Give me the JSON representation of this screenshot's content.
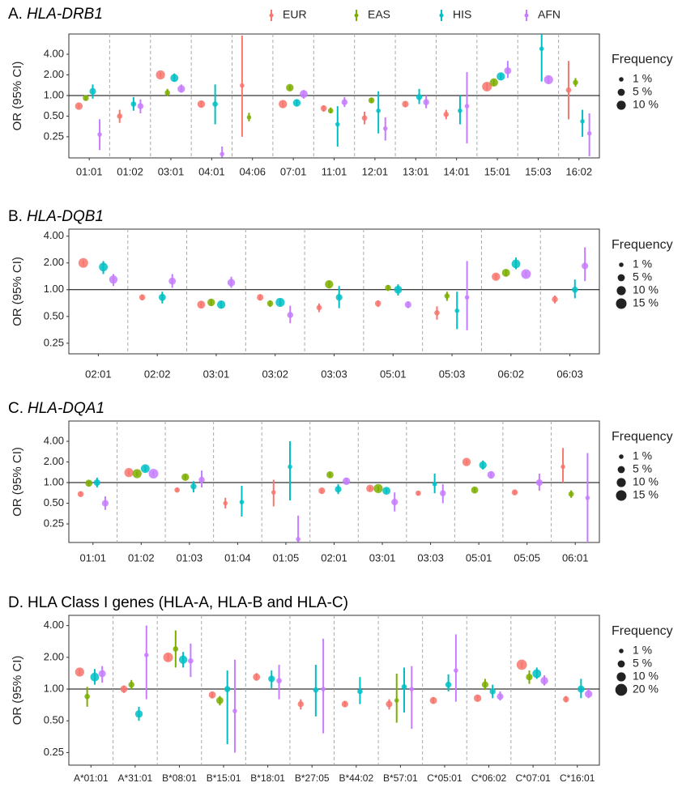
{
  "chart_data": [
    {
      "type": "forest",
      "panel": "A.",
      "title": "HLA-DRB1",
      "title_italic": true,
      "ylabel": "OR (95% CI)",
      "log_y": true,
      "refline": 1,
      "legend": "top",
      "categories": [
        "01:01",
        "01:02",
        "03:01",
        "04:01",
        "04:06",
        "07:01",
        "11:01",
        "12:01",
        "13:01",
        "14:01",
        "15:01",
        "15:03",
        "16:02"
      ],
      "ylim": [
        0.123,
        7.9
      ],
      "yticks": [
        0.25,
        {
          "value": 0.5,
          "label": "0.50"
        },
        {
          "value": 1,
          "label": "1.00"
        },
        {
          "value": 2,
          "label": "2.00"
        },
        {
          "value": 4,
          "label": "4.00"
        }
      ],
      "size_legend": {
        "title": "Frequency",
        "values": [
          1,
          5,
          10
        ],
        "labels": [
          "1 %",
          "5 %",
          "10 %"
        ]
      },
      "series": [
        {
          "name": "EUR",
          "color": "#F8766D",
          "values": [
            0.7,
            0.5,
            2.0,
            0.75,
            1.4,
            0.75,
            0.65,
            0.47,
            0.75,
            0.53,
            1.35,
            null,
            1.2
          ],
          "lower": [
            0.65,
            0.4,
            1.85,
            0.68,
            0.25,
            0.68,
            0.58,
            0.38,
            0.68,
            0.45,
            1.2,
            null,
            0.45
          ],
          "upper": [
            0.76,
            0.62,
            2.15,
            0.83,
            7.5,
            0.83,
            0.72,
            0.58,
            0.82,
            0.62,
            1.5,
            null,
            3.2
          ],
          "freq": [
            6,
            2,
            10,
            6,
            1,
            8,
            3,
            2,
            4,
            2,
            12,
            null,
            2
          ]
        },
        {
          "name": "EAS",
          "color": "#7CAE00",
          "values": [
            0.92,
            null,
            1.1,
            null,
            0.48,
            1.3,
            0.6,
            0.85,
            null,
            null,
            1.55,
            null,
            1.55
          ],
          "lower": [
            0.85,
            null,
            0.98,
            null,
            0.42,
            1.2,
            0.55,
            0.78,
            null,
            null,
            1.4,
            null,
            1.35
          ],
          "upper": [
            1.0,
            null,
            1.25,
            null,
            0.56,
            1.4,
            0.67,
            0.92,
            null,
            null,
            1.7,
            null,
            1.8
          ],
          "freq": [
            3,
            null,
            2,
            null,
            1,
            6,
            2,
            3,
            null,
            null,
            8,
            null,
            2
          ]
        },
        {
          "name": "HIS",
          "color": "#00BFC4",
          "values": [
            1.15,
            0.75,
            1.8,
            0.75,
            null,
            0.78,
            0.38,
            0.6,
            0.95,
            0.6,
            1.9,
            4.8,
            0.42
          ],
          "lower": [
            0.9,
            0.6,
            1.6,
            0.38,
            null,
            0.7,
            0.18,
            0.28,
            0.75,
            0.38,
            1.7,
            1.6,
            0.25
          ],
          "upper": [
            1.45,
            0.95,
            2.1,
            1.45,
            null,
            0.88,
            0.7,
            1.15,
            1.25,
            1.0,
            2.1,
            7.9,
            0.62
          ],
          "freq": [
            4,
            2,
            7,
            2,
            null,
            6,
            1,
            1,
            3,
            1,
            8,
            1,
            1
          ]
        },
        {
          "name": "AFN",
          "color": "#C77CFF",
          "values": [
            0.27,
            0.7,
            1.25,
            0.14,
            null,
            1.05,
            0.8,
            0.33,
            0.8,
            0.7,
            2.3,
            1.7,
            0.28
          ],
          "lower": [
            0.16,
            0.55,
            1.1,
            0.125,
            null,
            0.9,
            0.68,
            0.22,
            0.65,
            0.2,
            1.8,
            1.5,
            0.13
          ],
          "upper": [
            0.45,
            0.88,
            1.45,
            0.18,
            null,
            1.2,
            0.95,
            0.48,
            1.0,
            2.2,
            3.2,
            1.9,
            0.55
          ],
          "freq": [
            1,
            3,
            6,
            1,
            null,
            7,
            3,
            1,
            3,
            1,
            5,
            10,
            1
          ]
        }
      ]
    },
    {
      "type": "forest",
      "panel": "B.",
      "title": "HLA-DQB1",
      "title_italic": true,
      "ylabel": "OR (95% CI)",
      "log_y": true,
      "refline": 1,
      "categories": [
        "02:01",
        "02:02",
        "03:01",
        "03:02",
        "03:03",
        "05:01",
        "05:03",
        "06:02",
        "06:03"
      ],
      "ylim": [
        0.19,
        4.8
      ],
      "yticks": [
        0.25,
        {
          "value": 0.5,
          "label": "0.50"
        },
        {
          "value": 1,
          "label": "1.00"
        },
        {
          "value": 2,
          "label": "2.00"
        },
        {
          "value": 4,
          "label": "4.00"
        }
      ],
      "size_legend": {
        "title": "Frequency",
        "values": [
          1,
          5,
          10,
          15
        ],
        "labels": [
          "1 %",
          "5 %",
          "10 %",
          "15 %"
        ]
      },
      "series": [
        {
          "color": "#F8766D",
          "values": [
            2.0,
            0.82,
            0.68,
            0.82,
            0.63,
            0.7,
            0.55,
            1.4,
            0.78
          ],
          "lower": [
            1.85,
            0.76,
            0.63,
            0.76,
            0.56,
            0.64,
            0.46,
            1.3,
            0.7
          ],
          "upper": [
            2.15,
            0.88,
            0.73,
            0.88,
            0.7,
            0.76,
            0.65,
            1.5,
            0.86
          ],
          "freq": [
            12,
            3,
            7,
            4,
            2,
            3,
            2,
            8,
            3
          ]
        },
        {
          "color": "#7CAE00",
          "values": [
            null,
            null,
            0.72,
            0.7,
            1.15,
            1.05,
            0.85,
            1.55,
            null
          ],
          "lower": [
            null,
            null,
            0.66,
            0.64,
            1.05,
            0.97,
            0.75,
            1.42,
            null
          ],
          "upper": [
            null,
            null,
            0.78,
            0.76,
            1.25,
            1.13,
            0.95,
            1.68,
            null
          ],
          "freq": [
            null,
            null,
            6,
            3,
            8,
            3,
            2,
            7,
            null
          ]
        },
        {
          "color": "#00BFC4",
          "values": [
            1.8,
            0.82,
            0.68,
            0.72,
            0.82,
            1.0,
            0.58,
            1.95,
            1.0
          ],
          "lower": [
            1.5,
            0.7,
            0.62,
            0.66,
            0.62,
            0.86,
            0.36,
            1.7,
            0.8
          ],
          "upper": [
            2.1,
            0.95,
            0.74,
            0.78,
            1.1,
            1.15,
            0.95,
            2.3,
            1.3
          ],
          "freq": [
            9,
            5,
            8,
            10,
            4,
            7,
            1,
            9,
            3
          ]
        },
        {
          "color": "#C77CFF",
          "values": [
            1.3,
            1.25,
            1.2,
            0.52,
            null,
            0.68,
            0.82,
            1.5,
            1.85
          ],
          "lower": [
            1.1,
            1.05,
            1.05,
            0.42,
            null,
            0.62,
            0.35,
            1.4,
            1.25
          ],
          "upper": [
            1.5,
            1.5,
            1.4,
            0.66,
            null,
            0.74,
            2.1,
            1.6,
            3.0
          ],
          "freq": [
            8,
            5,
            6,
            3,
            null,
            4,
            1,
            12,
            4
          ]
        }
      ]
    },
    {
      "type": "forest",
      "panel": "C.",
      "title": "HLA-DQA1",
      "title_italic": true,
      "ylabel": "OR (95% CI)",
      "log_y": true,
      "refline": 1,
      "categories": [
        "01:01",
        "01:02",
        "01:03",
        "01:04",
        "01:05",
        "02:01",
        "03:01",
        "03:03",
        "05:01",
        "05:05",
        "06:01"
      ],
      "ylim": [
        0.134,
        7.9
      ],
      "yticks": [
        0.25,
        {
          "value": 0.5,
          "label": "0.50"
        },
        {
          "value": 1,
          "label": "1.00"
        },
        {
          "value": 2,
          "label": "2.00"
        },
        {
          "value": 4,
          "label": "4.00"
        }
      ],
      "size_legend": {
        "title": "Frequency",
        "values": [
          1,
          5,
          10,
          15
        ],
        "labels": [
          "1 %",
          "5 %",
          "10 %",
          "15 %"
        ]
      },
      "series": [
        {
          "color": "#F8766D",
          "values": [
            0.68,
            1.4,
            0.78,
            0.5,
            0.72,
            0.76,
            0.82,
            0.7,
            2.0,
            0.72,
            1.7
          ],
          "lower": [
            0.63,
            1.3,
            0.73,
            0.42,
            0.45,
            0.7,
            0.77,
            0.65,
            1.85,
            0.67,
            1.0
          ],
          "upper": [
            0.73,
            1.5,
            0.84,
            0.6,
            1.1,
            0.82,
            0.88,
            0.76,
            2.15,
            0.78,
            3.2
          ],
          "freq": [
            3,
            10,
            2,
            1,
            1,
            4,
            6,
            2,
            8,
            3,
            1
          ]
        },
        {
          "color": "#7CAE00",
          "values": [
            0.98,
            1.35,
            1.2,
            null,
            null,
            1.3,
            0.82,
            null,
            0.78,
            null,
            0.68
          ],
          "lower": [
            0.9,
            1.25,
            1.1,
            null,
            null,
            1.2,
            0.76,
            null,
            0.72,
            null,
            0.6
          ],
          "upper": [
            1.07,
            1.45,
            1.3,
            null,
            null,
            1.4,
            0.88,
            null,
            0.84,
            null,
            0.77
          ],
          "freq": [
            5,
            10,
            6,
            null,
            null,
            5,
            10,
            null,
            5,
            null,
            2
          ]
        },
        {
          "color": "#00BFC4",
          "values": [
            1.0,
            1.6,
            0.88,
            0.52,
            1.7,
            0.8,
            0.76,
            0.95,
            1.8,
            null,
            null
          ],
          "lower": [
            0.85,
            1.45,
            0.72,
            0.32,
            0.55,
            0.68,
            0.7,
            0.7,
            1.55,
            null,
            null
          ],
          "upper": [
            1.18,
            1.75,
            1.05,
            0.9,
            4.0,
            0.95,
            0.82,
            1.35,
            2.1,
            null,
            null
          ],
          "freq": [
            4,
            9,
            3,
            1,
            1,
            4,
            7,
            1,
            6,
            null,
            null
          ]
        },
        {
          "color": "#C77CFF",
          "values": [
            0.5,
            1.35,
            1.1,
            null,
            0.15,
            1.05,
            0.52,
            0.7,
            1.3,
            1.0,
            0.6
          ],
          "lower": [
            0.4,
            1.25,
            0.85,
            null,
            0.135,
            0.93,
            0.38,
            0.5,
            1.15,
            0.76,
            0.134
          ],
          "upper": [
            0.63,
            1.45,
            1.5,
            null,
            0.33,
            1.18,
            0.72,
            0.95,
            1.45,
            1.35,
            2.7
          ],
          "freq": [
            4,
            12,
            3,
            null,
            1,
            6,
            4,
            3,
            6,
            4,
            1
          ]
        }
      ]
    },
    {
      "type": "forest",
      "panel": "D.",
      "title": "HLA Class I genes (HLA-A, HLA-B and HLA-C)",
      "title_italic": false,
      "ylabel": "OR (95% CI)",
      "log_y": true,
      "refline": 1,
      "categories": [
        "A*01:01",
        "A*31:01",
        "B*08:01",
        "B*15:01",
        "B*18:01",
        "B*27:05",
        "B*44:02",
        "B*57:01",
        "C*05:01",
        "C*06:02",
        "C*07:01",
        "C*16:01"
      ],
      "ylim": [
        0.19,
        5.0
      ],
      "yticks": [
        0.25,
        {
          "value": 0.5,
          "label": "0.50"
        },
        {
          "value": 1,
          "label": "1.00"
        },
        {
          "value": 2,
          "label": "2.00"
        },
        {
          "value": 4,
          "label": "4.00"
        }
      ],
      "size_legend": {
        "title": "Frequency",
        "values": [
          1,
          5,
          10,
          20
        ],
        "labels": [
          "1 %",
          "5 %",
          "10 %",
          "20 %"
        ]
      },
      "series": [
        {
          "color": "#F8766D",
          "values": [
            1.45,
            1.0,
            2.0,
            0.88,
            1.3,
            0.72,
            0.72,
            0.72,
            0.78,
            0.82,
            1.7,
            0.8
          ],
          "lower": [
            1.35,
            0.92,
            1.85,
            0.82,
            1.2,
            0.64,
            0.68,
            0.64,
            0.73,
            0.77,
            1.6,
            0.75
          ],
          "upper": [
            1.55,
            1.08,
            2.15,
            0.95,
            1.42,
            0.8,
            0.77,
            0.8,
            0.84,
            0.87,
            1.8,
            0.86
          ],
          "freq": [
            10,
            5,
            12,
            5,
            5,
            3,
            4,
            4,
            5,
            6,
            14,
            3
          ]
        },
        {
          "color": "#7CAE00",
          "values": [
            0.85,
            1.1,
            2.4,
            0.78,
            null,
            null,
            null,
            0.78,
            null,
            1.1,
            1.3,
            null
          ],
          "lower": [
            0.68,
            1.0,
            1.6,
            0.7,
            null,
            null,
            null,
            0.48,
            null,
            0.98,
            1.12,
            null
          ],
          "upper": [
            1.05,
            1.22,
            3.6,
            0.86,
            null,
            null,
            null,
            1.4,
            null,
            1.25,
            1.5,
            null
          ],
          "freq": [
            2,
            3,
            2,
            5,
            null,
            null,
            null,
            1,
            null,
            4,
            4,
            null
          ]
        },
        {
          "color": "#00BFC4",
          "values": [
            1.3,
            0.58,
            1.9,
            1.0,
            1.25,
            0.98,
            0.95,
            1.05,
            1.1,
            0.95,
            1.4,
            1.0
          ],
          "lower": [
            1.1,
            0.5,
            1.6,
            0.3,
            1.02,
            0.55,
            0.72,
            0.6,
            0.95,
            0.82,
            1.25,
            0.82
          ],
          "upper": [
            1.55,
            0.68,
            2.25,
            1.5,
            1.5,
            1.7,
            1.3,
            1.6,
            1.38,
            1.1,
            1.6,
            1.25
          ],
          "freq": [
            9,
            6,
            8,
            3,
            4,
            2,
            2,
            2,
            3,
            3,
            9,
            5
          ]
        },
        {
          "color": "#C77CFF",
          "values": [
            1.4,
            2.1,
            1.85,
            0.62,
            1.2,
            1.0,
            null,
            1.0,
            1.5,
            0.85,
            1.2,
            0.9
          ],
          "lower": [
            1.15,
            0.8,
            1.3,
            0.25,
            0.8,
            0.38,
            null,
            0.42,
            0.76,
            0.78,
            1.08,
            0.82
          ],
          "upper": [
            1.65,
            4.0,
            2.7,
            1.9,
            1.7,
            3.0,
            null,
            1.65,
            3.3,
            0.95,
            1.35,
            1.0
          ],
          "freq": [
            5,
            1,
            2,
            1,
            2,
            1,
            null,
            1,
            1,
            4,
            6,
            6
          ]
        }
      ]
    }
  ]
}
